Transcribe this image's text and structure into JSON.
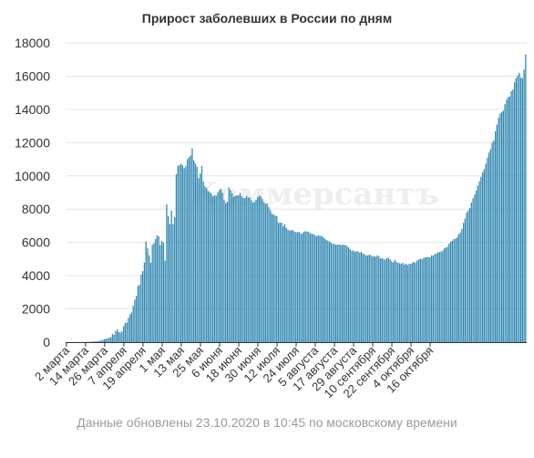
{
  "chart_data": {
    "type": "bar",
    "title": "Прирост заболевших в России по дням",
    "footnote": "Данные обновлены 23.10.2020 в 10:45 по московскому времени",
    "watermark": "Коммерсантъ",
    "ylim": [
      0,
      18000
    ],
    "yticks": [
      "0",
      "2000",
      "4000",
      "6000",
      "8000",
      "10000",
      "12000",
      "14000",
      "16000",
      "18000"
    ],
    "xticks": [
      "2 марта",
      "14 марта",
      "26 марта",
      "7 апреля",
      "19 апреля",
      "1 мая",
      "13 мая",
      "25 мая",
      "6 июня",
      "18 июня",
      "30 июня",
      "12 июля",
      "24 июля",
      "5 августа",
      "17 августа",
      "29 августа",
      "10 сентября",
      "22 сентября",
      "4 октября",
      "16 октября"
    ],
    "xtick_interval_days": 12,
    "grid": true,
    "bar_color": "#2e86b1",
    "start_date": "2 марта",
    "values": [
      1,
      0,
      0,
      0,
      0,
      0,
      1,
      1,
      3,
      3,
      4,
      7,
      13,
      14,
      16,
      20,
      30,
      30,
      50,
      50,
      60,
      80,
      100,
      130,
      180,
      200,
      230,
      260,
      300,
      500,
      440,
      660,
      770,
      601,
      582,
      658,
      954,
      1154,
      1175,
      1459,
      1667,
      1786,
      2186,
      2558,
      2774,
      3388,
      3448,
      4070,
      4268,
      4785,
      6060,
      5642,
      5236,
      4774,
      5849,
      5966,
      6198,
      6411,
      6361,
      5841,
      6093,
      5972,
      4894,
      8290,
      7584,
      7099,
      7911,
      7099,
      7524,
      10094,
      10599,
      10650,
      10730,
      10633,
      10466,
      10585,
      11009,
      11123,
      11231,
      11656,
      10931,
      10735,
      10557,
      9858,
      10138,
      10595,
      9657,
      9378,
      9266,
      9094,
      9035,
      8941,
      8791,
      8832,
      8814,
      9013,
      9140,
      9228,
      8976,
      8536,
      8350,
      8447,
      9306,
      9144,
      8959,
      8744,
      8783,
      8831,
      8833,
      8983,
      8779,
      8674,
      8664,
      8788,
      8687,
      8703,
      8529,
      8385,
      8439,
      8565,
      8720,
      8816,
      8758,
      8610,
      8422,
      8320,
      8340,
      8122,
      7927,
      7730,
      7671,
      7610,
      7600,
      7176,
      7177,
      7188,
      6971,
      7091,
      6880,
      6760,
      6722,
      6718,
      6750,
      6652,
      6610,
      6612,
      6638,
      6524,
      6540,
      6638,
      6680,
      6641,
      6639,
      6549,
      6508,
      6501,
      6426,
      6361,
      6443,
      6394,
      6393,
      6329,
      6236,
      6157,
      6097,
      6049,
      5982,
      5912,
      5903,
      5856,
      5861,
      5871,
      5857,
      5836,
      5865,
      5826,
      5790,
      5690,
      5588,
      5488,
      5521,
      5447,
      5455,
      5462,
      5375,
      5428,
      5326,
      5269,
      5217,
      5212,
      5268,
      5232,
      5143,
      5180,
      5139,
      5224,
      5156,
      5034,
      5049,
      4987,
      4966,
      5049,
      5077,
      4984,
      4869,
      4798,
      4950,
      4833,
      4770,
      4744,
      4706,
      4770,
      4670,
      4726,
      4637,
      4711,
      4712,
      4767,
      4835,
      4780,
      4920,
      4962,
      5023,
      4980,
      5072,
      5097,
      5102,
      5130,
      5102,
      5212,
      5196,
      5295,
      5328,
      5404,
      5413,
      5454,
      5507,
      5644,
      5684,
      5736,
      5925,
      6039,
      6100,
      6204,
      6217,
      6295,
      6489,
      6597,
      6810,
      7171,
      7439,
      7793,
      7923,
      8065,
      8394,
      8653,
      8876,
      9116,
      9412,
      9671,
      9945,
      10211,
      10397,
      10734,
      11103,
      11398,
      11615,
      12001,
      12125,
      12678,
      13076,
      13495,
      13753,
      13836,
      13924,
      14311,
      14586,
      14738,
      14778,
      15099,
      15200,
      15632,
      15886,
      16050,
      16209,
      15904,
      15888,
      16391,
      17297
    ],
    "x_axis_label": "",
    "y_axis_label": ""
  }
}
